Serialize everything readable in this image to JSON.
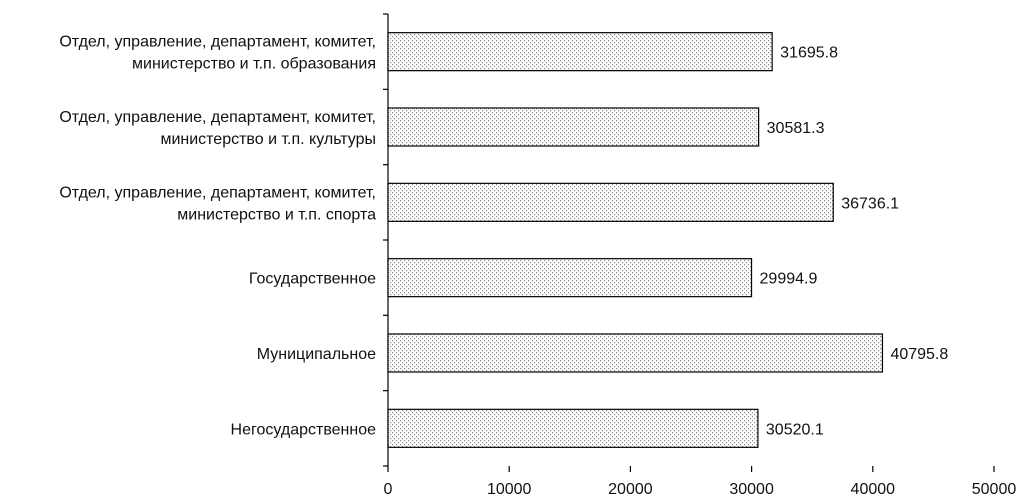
{
  "chart_data": {
    "type": "bar",
    "orientation": "horizontal",
    "categories": [
      [
        "Отдел, управление, департамент, комитет,",
        "министерство и т.п. образования"
      ],
      [
        "Отдел, управление, департамент, комитет,",
        "министерство и т.п. культуры"
      ],
      [
        "Отдел, управление, департамент, комитет,",
        "министерство и т.п. спорта"
      ],
      [
        "Государственное"
      ],
      [
        "Муниципальное"
      ],
      [
        "Негосударственное"
      ]
    ],
    "values": [
      31695.8,
      30581.3,
      36736.1,
      29994.9,
      40795.8,
      30520.1
    ],
    "value_labels": [
      "31695.8",
      "30581.3",
      "36736.1",
      "29994.9",
      "40795.8",
      "30520.1"
    ],
    "xlim": [
      0,
      50000
    ],
    "xticks": [
      0,
      10000,
      20000,
      30000,
      40000,
      50000
    ],
    "xtick_labels": [
      "0",
      "10000",
      "20000",
      "30000",
      "40000",
      "50000"
    ],
    "title": "",
    "xlabel": "",
    "ylabel": "",
    "grid": false,
    "bar_fill": "dotted-pattern",
    "bar_color": "#b8b8b8",
    "bar_edge_color": "#000000"
  }
}
